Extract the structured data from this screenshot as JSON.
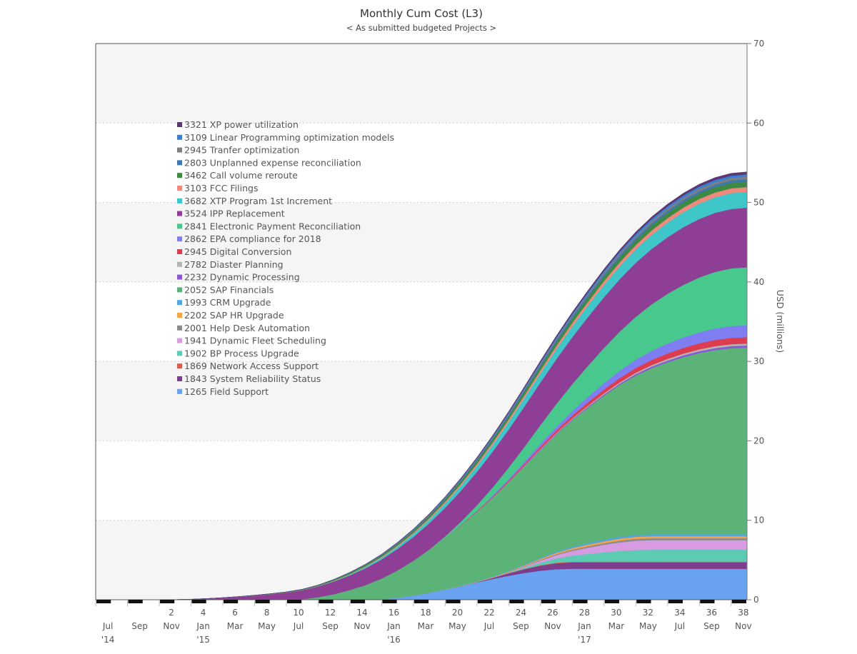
{
  "chart_data": {
    "type": "area",
    "stacked": true,
    "title": "Monthly Cum Cost  (L3)",
    "subtitle": "< As submitted budgeted Projects >",
    "ylabel": "USD (millions)",
    "ylim": [
      0,
      70
    ],
    "yticks": [
      0,
      10,
      20,
      30,
      40,
      50,
      60,
      70
    ],
    "y_axis_side": "right",
    "grid": "horizontal bands",
    "legend_position": "top-left (inside plot)",
    "x_start": "2014-07",
    "x_end": "2017-12",
    "x_tick_months": [
      "Jul",
      "Sep",
      "Nov",
      "Jan",
      "Mar",
      "May",
      "Jul",
      "Sep",
      "Nov",
      "Jan",
      "Mar",
      "May",
      "Jul",
      "Sep",
      "Nov",
      "Jan",
      "Mar",
      "May",
      "Jul",
      "Sep",
      "Nov"
    ],
    "x_tick_years": [
      "'14",
      "",
      "",
      "'15",
      "",
      "",
      "",
      "",
      "",
      "'16",
      "",
      "",
      "",
      "",
      "",
      "'17",
      "",
      "",
      "",
      "",
      ""
    ],
    "x_top_numbers": [
      "",
      "",
      "2",
      "4",
      "6",
      "8",
      "10",
      "12",
      "14",
      "16",
      "18",
      "20",
      "22",
      "24",
      "26",
      "28",
      "30",
      "32",
      "34",
      "36",
      "38"
    ],
    "series": [
      {
        "name": "1265 Field Support",
        "color": "#6aa2f2",
        "start": "2015-12",
        "end": "2017-01",
        "total": 3.9
      },
      {
        "name": "1843 System Reliability Status",
        "color": "#7d3c8c",
        "start": "2016-06",
        "end": "2017-01",
        "total": 0.8
      },
      {
        "name": "1869 Network Access Support",
        "color": "#e05a47",
        "start": "2016-08",
        "end": "2017-02",
        "total": 0.1
      },
      {
        "name": "1902 BP Process Upgrade",
        "color": "#5dcab2",
        "start": "2016-08",
        "end": "2017-06",
        "total": 1.5
      },
      {
        "name": "1941 Dynamic Fleet Scheduling",
        "color": "#d79be2",
        "start": "2016-08",
        "end": "2017-06",
        "total": 1.2
      },
      {
        "name": "2001 Help Desk Automation",
        "color": "#8c8c8c",
        "start": "2016-06",
        "end": "2017-06",
        "total": 0.25
      },
      {
        "name": "2202 SAP HR Upgrade",
        "color": "#f7a348",
        "start": "2016-03",
        "end": "2017-06",
        "total": 0.25
      },
      {
        "name": " 1993 CRM Upgrade",
        "color": "#52a6e0",
        "start": "2016-03",
        "end": "2017-06",
        "total": 0.25
      },
      {
        "name": "2052 SAP Financials",
        "color": "#5cb377",
        "start": "2015-07",
        "end": "2017-12",
        "total": 23.5
      },
      {
        "name": "2232 Dynamic Processing",
        "color": "#8a56d6",
        "start": "2016-04",
        "end": "2017-12",
        "total": 0.25
      },
      {
        "name": "2782 Diaster Planning",
        "color": "#b3b3b3",
        "start": "2016-04",
        "end": "2017-12",
        "total": 0.25
      },
      {
        "name": "2945 Digital Conversion",
        "color": "#dd3c4f",
        "start": "2016-03",
        "end": "2017-12",
        "total": 0.8
      },
      {
        "name": "2862 EPA compliance for 2018",
        "color": "#7e7ef2",
        "start": "2016-05",
        "end": "2017-12",
        "total": 1.5
      },
      {
        "name": "2841 Electronic Payment Reconciliation",
        "color": "#49c88e",
        "start": "2016-03",
        "end": "2017-12",
        "total": 7.3
      },
      {
        "name": "3524 IPP Replacement",
        "color": "#8e3e95",
        "start": "2014-11",
        "end": "2017-12",
        "total": 7.5
      },
      {
        "name": "3682  XTP Program 1st Increment",
        "color": "#3fc6c8",
        "start": "2015-07",
        "end": "2017-12",
        "total": 2.0
      },
      {
        "name": "3103 FCC Filings",
        "color": "#f08a7c",
        "start": "2015-05",
        "end": "2017-12",
        "total": 0.6
      },
      {
        "name": "3462 Call volume reroute",
        "color": "#3e8a45",
        "start": "2014-12",
        "end": "2017-12",
        "total": 0.7
      },
      {
        "name": "2803 Unplanned expense reconciliation",
        "color": "#3d77b0",
        "start": "2015-07",
        "end": "2017-12",
        "total": 0.3
      },
      {
        "name": "2945 Tranfer optimization",
        "color": "#7f7f7f",
        "start": "2015-07",
        "end": "2017-12",
        "total": 0.3
      },
      {
        "name": "3109 Linear Programming optimization models",
        "color": "#3a7fd6",
        "start": "2015-07",
        "end": "2017-12",
        "total": 0.3
      },
      {
        "name": "3321 XP power utilization",
        "color": "#5b3970",
        "start": "2015-07",
        "end": "2017-12",
        "total": 0.3
      }
    ],
    "legend_order": [
      "3321 XP power utilization",
      "3109 Linear Programming optimization models",
      "2945 Tranfer optimization",
      "2803 Unplanned expense reconciliation",
      "3462 Call volume reroute",
      "3103 FCC Filings",
      "3682  XTP Program 1st Increment",
      "3524 IPP Replacement",
      "2841 Electronic Payment Reconciliation",
      "2862 EPA compliance for 2018",
      "2945 Digital Conversion",
      "2782 Diaster Planning",
      "2232 Dynamic Processing",
      "2052 SAP Financials",
      " 1993 CRM Upgrade",
      "2202 SAP HR Upgrade",
      "2001 Help Desk Automation",
      "1941 Dynamic Fleet Scheduling",
      "1902 BP Process Upgrade",
      "1869 Network Access Support",
      "1843 System Reliability Status",
      "1265 Field Support"
    ]
  }
}
